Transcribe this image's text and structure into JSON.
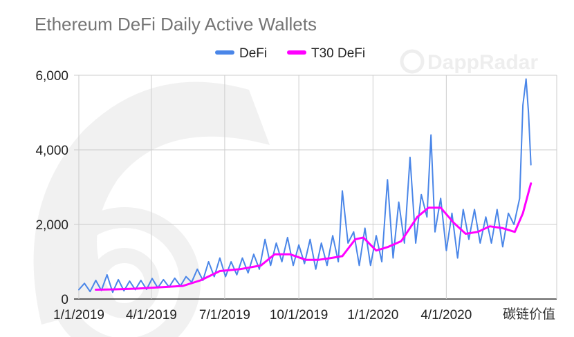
{
  "chart_data": {
    "type": "line",
    "title": "Ethereum DeFi Daily Active Wallets",
    "watermark": "DappRadar",
    "corner_mark": "碳链价值",
    "xlabel": "",
    "ylabel": "",
    "x_range": [
      "2018-12-26",
      "2020-08-16"
    ],
    "ylim": [
      0,
      6000
    ],
    "y_ticks": [
      0,
      2000,
      4000,
      6000
    ],
    "y_tick_labels": [
      "0",
      "2,000",
      "4,000",
      "6,000"
    ],
    "x_ticks": [
      "2019-01-01",
      "2019-04-01",
      "2019-07-01",
      "2019-10-01",
      "2020-01-01",
      "2020-04-01"
    ],
    "x_tick_labels": [
      "1/1/2019",
      "4/1/2019",
      "7/1/2019",
      "10/1/2019",
      "1/1/2020",
      "4/1/2020"
    ],
    "grid": true,
    "legend_position": "top",
    "series": [
      {
        "name": "DeFi",
        "color": "#4a86e8",
        "points": [
          [
            "2019-01-01",
            250
          ],
          [
            "2019-01-08",
            420
          ],
          [
            "2019-01-15",
            200
          ],
          [
            "2019-01-22",
            500
          ],
          [
            "2019-01-29",
            230
          ],
          [
            "2019-02-05",
            650
          ],
          [
            "2019-02-12",
            180
          ],
          [
            "2019-02-19",
            520
          ],
          [
            "2019-02-26",
            220
          ],
          [
            "2019-03-05",
            480
          ],
          [
            "2019-03-12",
            250
          ],
          [
            "2019-03-19",
            500
          ],
          [
            "2019-03-26",
            260
          ],
          [
            "2019-04-02",
            550
          ],
          [
            "2019-04-09",
            300
          ],
          [
            "2019-04-16",
            520
          ],
          [
            "2019-04-23",
            320
          ],
          [
            "2019-04-30",
            560
          ],
          [
            "2019-05-07",
            350
          ],
          [
            "2019-05-14",
            600
          ],
          [
            "2019-05-21",
            450
          ],
          [
            "2019-05-28",
            800
          ],
          [
            "2019-06-04",
            500
          ],
          [
            "2019-06-11",
            1000
          ],
          [
            "2019-06-18",
            600
          ],
          [
            "2019-06-25",
            1100
          ],
          [
            "2019-07-02",
            600
          ],
          [
            "2019-07-09",
            1000
          ],
          [
            "2019-07-16",
            650
          ],
          [
            "2019-07-23",
            1100
          ],
          [
            "2019-07-30",
            700
          ],
          [
            "2019-08-06",
            1200
          ],
          [
            "2019-08-13",
            800
          ],
          [
            "2019-08-20",
            1600
          ],
          [
            "2019-08-27",
            900
          ],
          [
            "2019-09-03",
            1500
          ],
          [
            "2019-09-10",
            1000
          ],
          [
            "2019-09-17",
            1650
          ],
          [
            "2019-09-24",
            900
          ],
          [
            "2019-10-01",
            1450
          ],
          [
            "2019-10-08",
            950
          ],
          [
            "2019-10-15",
            1600
          ],
          [
            "2019-10-22",
            800
          ],
          [
            "2019-10-29",
            1500
          ],
          [
            "2019-11-05",
            900
          ],
          [
            "2019-11-12",
            1700
          ],
          [
            "2019-11-19",
            1000
          ],
          [
            "2019-11-24",
            2900
          ],
          [
            "2019-12-01",
            1500
          ],
          [
            "2019-12-08",
            1800
          ],
          [
            "2019-12-15",
            900
          ],
          [
            "2019-12-22",
            1900
          ],
          [
            "2019-12-29",
            900
          ],
          [
            "2020-01-05",
            1700
          ],
          [
            "2020-01-12",
            1000
          ],
          [
            "2020-01-19",
            3200
          ],
          [
            "2020-01-26",
            1100
          ],
          [
            "2020-02-02",
            2600
          ],
          [
            "2020-02-09",
            1500
          ],
          [
            "2020-02-16",
            3800
          ],
          [
            "2020-02-23",
            1500
          ],
          [
            "2020-03-01",
            2800
          ],
          [
            "2020-03-08",
            2200
          ],
          [
            "2020-03-13",
            4400
          ],
          [
            "2020-03-18",
            1800
          ],
          [
            "2020-03-25",
            2700
          ],
          [
            "2020-04-01",
            1300
          ],
          [
            "2020-04-08",
            2300
          ],
          [
            "2020-04-15",
            1100
          ],
          [
            "2020-04-22",
            2400
          ],
          [
            "2020-04-29",
            1600
          ],
          [
            "2020-05-06",
            2400
          ],
          [
            "2020-05-13",
            1500
          ],
          [
            "2020-05-20",
            2200
          ],
          [
            "2020-05-27",
            1500
          ],
          [
            "2020-06-03",
            2400
          ],
          [
            "2020-06-10",
            1400
          ],
          [
            "2020-06-17",
            2300
          ],
          [
            "2020-06-24",
            2000
          ],
          [
            "2020-07-01",
            2700
          ],
          [
            "2020-07-05",
            5200
          ],
          [
            "2020-07-09",
            5900
          ],
          [
            "2020-07-12",
            5000
          ],
          [
            "2020-07-15",
            3600
          ]
        ]
      },
      {
        "name": "T30 DeFi",
        "color": "#ff00ff",
        "points": [
          [
            "2019-01-22",
            250
          ],
          [
            "2019-02-15",
            260
          ],
          [
            "2019-03-15",
            280
          ],
          [
            "2019-04-15",
            320
          ],
          [
            "2019-05-10",
            350
          ],
          [
            "2019-06-01",
            500
          ],
          [
            "2019-06-25",
            750
          ],
          [
            "2019-07-20",
            800
          ],
          [
            "2019-08-15",
            900
          ],
          [
            "2019-09-01",
            1200
          ],
          [
            "2019-09-20",
            1200
          ],
          [
            "2019-10-10",
            1050
          ],
          [
            "2019-10-25",
            1050
          ],
          [
            "2019-11-10",
            1100
          ],
          [
            "2019-11-24",
            1150
          ],
          [
            "2019-12-10",
            1600
          ],
          [
            "2019-12-20",
            1650
          ],
          [
            "2020-01-05",
            1300
          ],
          [
            "2020-01-20",
            1400
          ],
          [
            "2020-02-05",
            1550
          ],
          [
            "2020-02-25",
            2200
          ],
          [
            "2020-03-10",
            2450
          ],
          [
            "2020-03-25",
            2450
          ],
          [
            "2020-04-10",
            2050
          ],
          [
            "2020-04-25",
            1750
          ],
          [
            "2020-05-10",
            1800
          ],
          [
            "2020-05-25",
            1950
          ],
          [
            "2020-06-10",
            1900
          ],
          [
            "2020-06-25",
            1800
          ],
          [
            "2020-07-05",
            2300
          ],
          [
            "2020-07-15",
            3100
          ]
        ]
      }
    ]
  }
}
